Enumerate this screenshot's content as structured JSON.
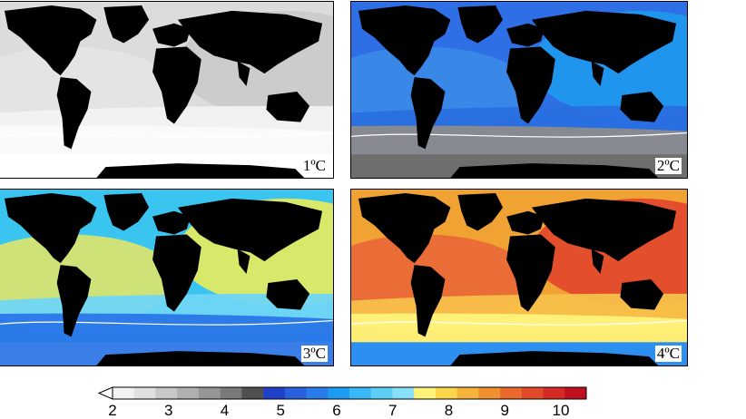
{
  "panels": [
    {
      "label": "1ºC",
      "bg": "#dcdcdc",
      "bands": [
        "#c8c8c8",
        "#e6e6e6",
        "#f2f2f2",
        "#fafafa"
      ],
      "polar": "#ffffff"
    },
    {
      "label": "2ºC",
      "bg": "#2e6fe6",
      "bands": [
        "#1d9ff0",
        "#3c8ee8",
        "#2a6fe0",
        "#8c8c8c"
      ],
      "polar": "#6e6e6e"
    },
    {
      "label": "3ºC",
      "bg": "#39c5ef",
      "bands": [
        "#fff04a",
        "#f5e85a",
        "#6fd6f5",
        "#2a76e8"
      ],
      "polar": "#3a7fe8"
    },
    {
      "label": "4ºC",
      "bg": "#f0a232",
      "bands": [
        "#e03a2a",
        "#e8603a",
        "#f7c04a",
        "#fff27a"
      ],
      "polar": "#2d8ff0"
    }
  ],
  "colorbar": {
    "ticks": [
      "2",
      "3",
      "4",
      "5",
      "6",
      "7",
      "8",
      "9",
      "10"
    ],
    "colors": [
      "#f2f2f2",
      "#e0e0e0",
      "#c8c8c8",
      "#b0b0b0",
      "#969696",
      "#7a7a7a",
      "#505050",
      "#2040c8",
      "#2a60e0",
      "#2a7cea",
      "#1c9cf0",
      "#38b8f4",
      "#5ccef6",
      "#88e0f8",
      "#fff27a",
      "#fbd64a",
      "#f5b23c",
      "#f09030",
      "#ea6a2c",
      "#e04a2a",
      "#d42a26",
      "#c01020"
    ]
  }
}
